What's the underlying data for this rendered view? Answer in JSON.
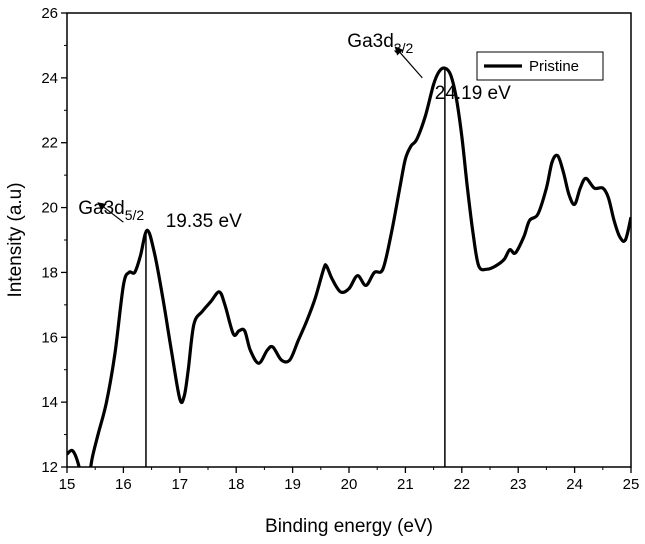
{
  "chart_data": {
    "type": "line",
    "xlabel": "Binding energy (eV)",
    "ylabel": "Intensity (a.u)",
    "xlim": [
      15,
      25
    ],
    "ylim": [
      12,
      26
    ],
    "xticks": [
      15,
      16,
      17,
      18,
      19,
      20,
      21,
      22,
      23,
      24,
      25
    ],
    "yticks": [
      12,
      14,
      16,
      18,
      20,
      22,
      24,
      26
    ],
    "grid": false,
    "legend_position": "top-right",
    "series": [
      {
        "name": "Pristine",
        "color": "#000000",
        "x": [
          15.0,
          15.1,
          15.2,
          15.3,
          15.38,
          15.45,
          15.55,
          15.7,
          15.85,
          16.0,
          16.1,
          16.2,
          16.3,
          16.42,
          16.55,
          16.7,
          16.85,
          17.0,
          17.08,
          17.15,
          17.25,
          17.4,
          17.55,
          17.7,
          17.8,
          17.95,
          18.05,
          18.15,
          18.25,
          18.4,
          18.55,
          18.65,
          18.8,
          18.95,
          19.1,
          19.25,
          19.4,
          19.55,
          19.6,
          19.7,
          19.85,
          20.0,
          20.15,
          20.3,
          20.45,
          20.6,
          20.75,
          20.9,
          21.0,
          21.1,
          21.2,
          21.35,
          21.5,
          21.6,
          21.7,
          21.8,
          21.9,
          22.0,
          22.1,
          22.2,
          22.3,
          22.45,
          22.6,
          22.75,
          22.85,
          22.95,
          23.1,
          23.2,
          23.35,
          23.5,
          23.6,
          23.7,
          23.8,
          23.9,
          24.0,
          24.1,
          24.2,
          24.35,
          24.5,
          24.6,
          24.7,
          24.8,
          24.9,
          25.0
        ],
        "y": [
          12.4,
          12.5,
          12.1,
          11.3,
          11.6,
          12.3,
          13.0,
          14.0,
          15.5,
          17.6,
          18.0,
          18.0,
          18.5,
          19.3,
          18.6,
          17.2,
          15.6,
          14.1,
          14.2,
          15.0,
          16.4,
          16.8,
          17.1,
          17.4,
          17.0,
          16.1,
          16.2,
          16.2,
          15.6,
          15.2,
          15.6,
          15.7,
          15.3,
          15.3,
          15.9,
          16.5,
          17.2,
          18.1,
          18.2,
          17.8,
          17.4,
          17.5,
          17.9,
          17.6,
          18.0,
          18.1,
          19.2,
          20.6,
          21.5,
          21.9,
          22.1,
          22.8,
          23.8,
          24.2,
          24.3,
          24.1,
          23.4,
          22.2,
          20.6,
          19.2,
          18.2,
          18.1,
          18.2,
          18.4,
          18.7,
          18.6,
          19.1,
          19.6,
          19.8,
          20.6,
          21.4,
          21.6,
          21.1,
          20.4,
          20.1,
          20.6,
          20.9,
          20.6,
          20.6,
          20.3,
          19.6,
          19.1,
          19.0,
          19.7
        ]
      }
    ],
    "reference_lines": [
      {
        "x": 16.4,
        "y_top": 19.3
      },
      {
        "x": 21.7,
        "y_top": 24.3
      }
    ],
    "annotations": [
      {
        "main": "Ga3d",
        "sub": "5/2",
        "x": 15.2,
        "y": 19.8,
        "arrow_from": [
          16.0,
          19.55
        ],
        "arrow_to": [
          15.55,
          20.15
        ]
      },
      {
        "main": "19.35 eV",
        "x": 16.75,
        "y": 19.4
      },
      {
        "main": "Ga3d",
        "sub": "3/2",
        "x": 19.97,
        "y": 24.95,
        "arrow_from": [
          21.3,
          24.0
        ],
        "arrow_to": [
          20.82,
          24.95
        ]
      },
      {
        "main": "24.19 eV",
        "x": 21.52,
        "y": 23.35
      }
    ]
  }
}
